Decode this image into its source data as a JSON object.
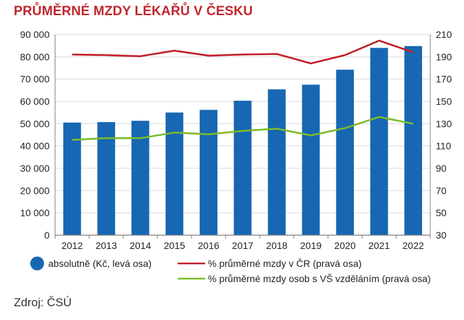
{
  "title": "PRŮMĚRNÉ MZDY LÉKAŘŮ V ČESKU",
  "source": "Zdroj: ČSÚ",
  "colors": {
    "title": "#c0262d",
    "bar": "#1767b3",
    "line_cr": "#c21f26",
    "line_vs": "#7dbb2a",
    "grid": "#d9d9d9",
    "axis": "#7f7f7f"
  },
  "chart_data": {
    "type": "bar",
    "categories": [
      "2012",
      "2013",
      "2014",
      "2015",
      "2016",
      "2017",
      "2018",
      "2019",
      "2020",
      "2021",
      "2022"
    ],
    "ylim_left": [
      0,
      90000
    ],
    "ylim_right": [
      30,
      210
    ],
    "y_ticks_left": [
      "0",
      "10 000",
      "20 000",
      "30 000",
      "40 000",
      "50 000",
      "60 000",
      "70 000",
      "80 000",
      "90 000"
    ],
    "y_ticks_right": [
      "30",
      "50",
      "70",
      "90",
      "110",
      "130",
      "150",
      "170",
      "190",
      "210"
    ],
    "grid": true,
    "legend_position": "bottom",
    "series": [
      {
        "name": "absolutně (Kč, levá osa)",
        "type": "bar",
        "axis": "left",
        "values": [
          50500,
          50700,
          51300,
          55000,
          56200,
          60300,
          65400,
          67500,
          74200,
          84000,
          84800
        ]
      },
      {
        "name": "% průměrné mzdy v ČR (pravá osa)",
        "type": "line",
        "axis": "right",
        "values": [
          192,
          191.5,
          190.5,
          195.5,
          191,
          192,
          192.5,
          184,
          191.5,
          204.5,
          194
        ]
      },
      {
        "name": "% průměrné mzdy osob s VŠ vzděláním (pravá osa)",
        "type": "line",
        "axis": "right",
        "values": [
          115.5,
          117,
          117,
          122,
          120.5,
          123.5,
          125.5,
          119.5,
          126,
          136,
          130
        ]
      }
    ]
  }
}
